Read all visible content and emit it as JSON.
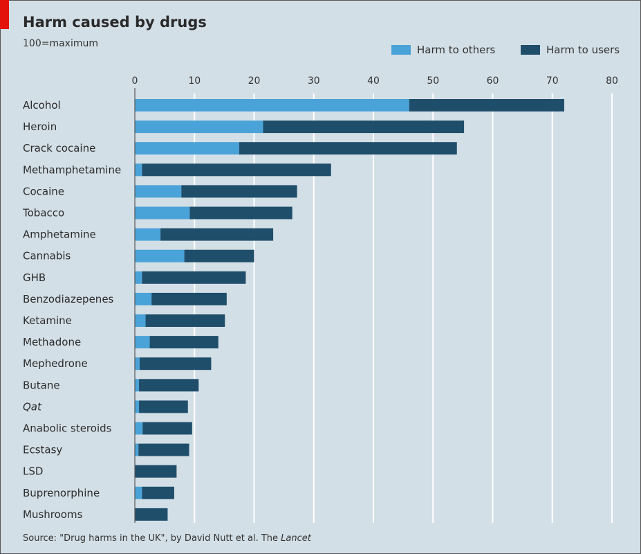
{
  "chart_data": {
    "type": "bar",
    "stacked": true,
    "orientation": "horizontal",
    "title": "Harm caused by drugs",
    "subtitle": "100=maximum",
    "xlabel": "",
    "ylabel": "",
    "xlim": [
      0,
      80
    ],
    "xticks": [
      0,
      10,
      20,
      30,
      40,
      50,
      60,
      70,
      80
    ],
    "grid": true,
    "legend_position": "top-right",
    "categories": [
      "Alcohol",
      "Heroin",
      "Crack cocaine",
      "Methamphetamine",
      "Cocaine",
      "Tobacco",
      "Amphetamine",
      "Cannabis",
      "GHB",
      "Benzodiazepenes",
      "Ketamine",
      "Methadone",
      "Mephedrone",
      "Butane",
      "Qat",
      "Anabolic steroids",
      "Ecstasy",
      "LSD",
      "Buprenorphine",
      "Mushrooms"
    ],
    "italic_categories": [
      "Qat"
    ],
    "series": [
      {
        "name": "Harm to others",
        "color": "#4aa3d8",
        "values": [
          46,
          21.5,
          17.5,
          1.2,
          7.8,
          9.2,
          4.3,
          8.3,
          1.2,
          2.8,
          1.8,
          2.5,
          0.8,
          0.7,
          0.7,
          1.3,
          0.6,
          0,
          1.2,
          0
        ]
      },
      {
        "name": "Harm to users",
        "color": "#1f4e6b",
        "values": [
          26,
          33.7,
          36.5,
          31.7,
          19.4,
          17.2,
          18.9,
          11.7,
          17.4,
          12.6,
          13.3,
          11.5,
          12.0,
          10.0,
          8.2,
          8.3,
          8.5,
          7.0,
          5.4,
          5.5
        ]
      }
    ],
    "totals": [
      72,
      55.2,
      54,
      32.9,
      27.2,
      26.4,
      23.2,
      20,
      18.6,
      15.4,
      15.1,
      14,
      12.8,
      10.7,
      8.9,
      9.6,
      9.1,
      7,
      6.6,
      5.5
    ],
    "source": "Source: \"Drug harms in the UK\", by David Nutt et al. The ",
    "source_italic": "Lancet"
  }
}
